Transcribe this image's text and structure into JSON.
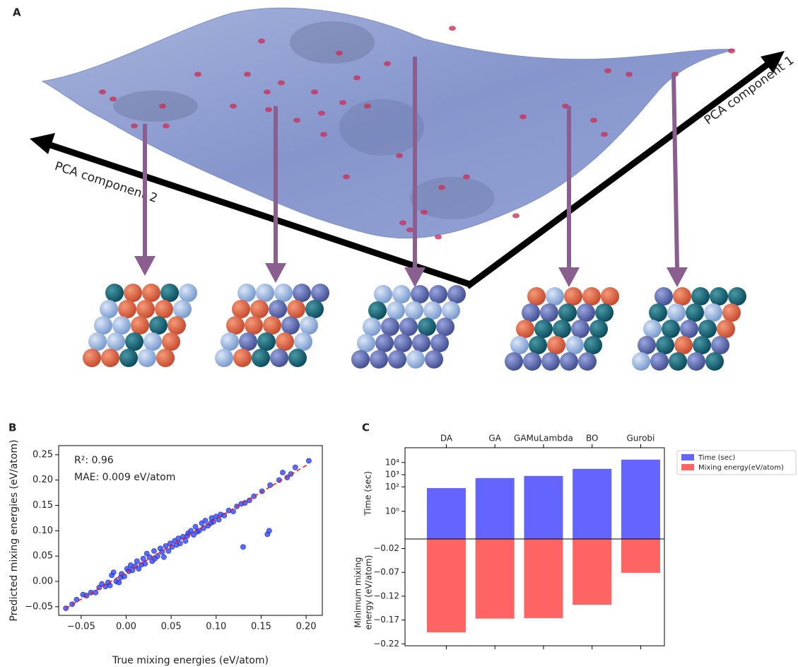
{
  "panel_a": {
    "label": "A",
    "axis_1_label": "PCA component 1",
    "axis_2_label": "PCA component 2"
  },
  "chart_data": [
    {
      "type": "scatter",
      "panel_label": "B",
      "xlabel": "True mixing energies (eV/atom)",
      "ylabel": "Predicted mixing energies (eV/atom)",
      "annotations": [
        "R²: 0.96",
        "MAE: 0.009 eV/atom"
      ],
      "color": "#3346f0",
      "x": [
        -0.067,
        -0.06,
        -0.055,
        -0.048,
        -0.044,
        -0.039,
        -0.034,
        -0.03,
        -0.027,
        -0.023,
        -0.02,
        -0.018,
        -0.016,
        -0.014,
        -0.011,
        -0.008,
        -0.006,
        -0.005,
        -0.002,
        0.001,
        0.003,
        0.005,
        0.007,
        0.01,
        0.012,
        0.014,
        0.017,
        0.019,
        0.021,
        0.023,
        0.026,
        0.029,
        0.031,
        0.032,
        0.035,
        0.038,
        0.04,
        0.042,
        0.044,
        0.047,
        0.049,
        0.051,
        0.054,
        0.056,
        0.058,
        0.06,
        0.063,
        0.066,
        0.068,
        0.069,
        0.072,
        0.075,
        0.077,
        0.079,
        0.081,
        0.084,
        0.086,
        0.088,
        0.091,
        0.094,
        0.095,
        0.097,
        0.1,
        0.103,
        0.105,
        0.13,
        0.109,
        0.114,
        0.119,
        0.123,
        0.157,
        0.159,
        0.128,
        0.132,
        0.137,
        0.142,
        0.151,
        0.16,
        0.17,
        0.174,
        0.179,
        0.183,
        0.188,
        0.203
      ],
      "y": [
        -0.053,
        -0.045,
        -0.036,
        -0.026,
        -0.028,
        -0.022,
        -0.022,
        -0.012,
        -0.005,
        -0.01,
        -0.002,
        -0.008,
        0.012,
        0.018,
        0.0,
        -0.002,
        0.008,
        0.015,
        0.01,
        0.025,
        0.02,
        0.032,
        0.022,
        0.03,
        0.04,
        0.025,
        0.033,
        0.045,
        0.035,
        0.055,
        0.048,
        0.04,
        0.06,
        0.045,
        0.05,
        0.065,
        0.058,
        0.048,
        0.07,
        0.06,
        0.075,
        0.068,
        0.08,
        0.072,
        0.085,
        0.075,
        0.088,
        0.08,
        0.09,
        0.095,
        0.1,
        0.092,
        0.108,
        0.098,
        0.1,
        0.115,
        0.105,
        0.12,
        0.11,
        0.115,
        0.125,
        0.118,
        0.128,
        0.122,
        0.132,
        0.068,
        0.13,
        0.14,
        0.138,
        0.148,
        0.093,
        0.1,
        0.153,
        0.155,
        0.16,
        0.168,
        0.178,
        0.19,
        0.2,
        0.215,
        0.205,
        0.212,
        0.225,
        0.238
      ],
      "fit_line": {
        "x": [
          -0.067,
          0.203
        ],
        "y": [
          -0.053,
          0.232
        ],
        "color": "#e8221c"
      },
      "xlim": [
        -0.075,
        0.218
      ],
      "ylim": [
        -0.067,
        0.268
      ],
      "xticks": [
        {
          "value": -0.05,
          "label": "−0.05"
        },
        {
          "value": 0,
          "label": "0.00"
        },
        {
          "value": 0.05,
          "label": "0.05"
        },
        {
          "value": 0.1,
          "label": "0.10"
        },
        {
          "value": 0.15,
          "label": "0.15"
        },
        {
          "value": 0.2,
          "label": "0.20"
        }
      ],
      "yticks": [
        {
          "value": -0.05,
          "label": "−0.05"
        },
        {
          "value": 0,
          "label": "0.00"
        },
        {
          "value": 0.05,
          "label": "0.05"
        },
        {
          "value": 0.1,
          "label": "0.10"
        },
        {
          "value": 0.15,
          "label": "0.15"
        },
        {
          "value": 0.2,
          "label": "0.20"
        },
        {
          "value": 0.25,
          "label": "0.25"
        }
      ]
    },
    {
      "type": "bar",
      "panel_label": "C",
      "categories": [
        "DA",
        "GA",
        "GAMuLambda",
        "BO",
        "Gurobi"
      ],
      "series": [
        {
          "name": "Time (sec)",
          "color": "#6464ff",
          "values": [
            80,
            530,
            790,
            3000,
            17000
          ]
        },
        {
          "name": "Mixing energy(eV/atom)",
          "color": "#ff6464",
          "values": [
            -0.196,
            -0.167,
            -0.166,
            -0.138,
            -0.071
          ],
          "axis": "y2"
        }
      ],
      "ylabel": "Time (sec)",
      "y2label": [
        "Minimum mixing",
        "energy (eV/atom)"
      ],
      "yscale": "log",
      "ylim": [
        0.0055,
        160000
      ],
      "yticks": [
        {
          "value": 1,
          "label": "10⁰"
        },
        {
          "value": 100,
          "label": "10²"
        },
        {
          "value": 1000,
          "label": "10³"
        },
        {
          "value": 10000,
          "label": "10⁴"
        }
      ],
      "y2lim": [
        -0.224,
        0
      ],
      "y2ticks": [
        {
          "value": -0.02,
          "label": "−0.02"
        },
        {
          "value": -0.07,
          "label": "−0.07"
        },
        {
          "value": -0.12,
          "label": "−0.12"
        },
        {
          "value": -0.17,
          "label": "−0.17"
        },
        {
          "value": -0.22,
          "label": "−0.22"
        }
      ],
      "legend": "outside-right"
    }
  ]
}
